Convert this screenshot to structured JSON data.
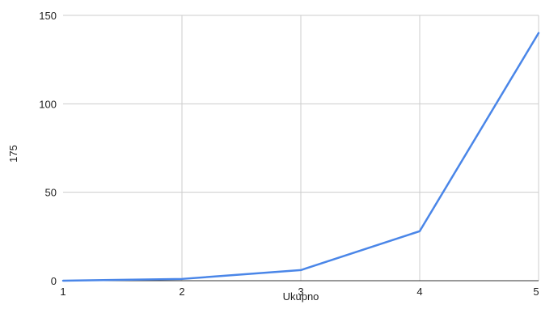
{
  "chart_data": {
    "type": "line",
    "xlabel": "Ukupno",
    "ylabel": "175",
    "x_ticks": [
      "1",
      "2",
      "3",
      "4",
      "5"
    ],
    "y_ticks": [
      "0",
      "50",
      "100",
      "150"
    ],
    "xlim": [
      1,
      5
    ],
    "ylim": [
      0,
      150
    ],
    "grid": true,
    "series": [
      {
        "color": "#4a86e8",
        "x": [
          1,
          2,
          3,
          4,
          5
        ],
        "y": [
          0,
          1,
          6,
          28,
          140
        ]
      }
    ]
  }
}
